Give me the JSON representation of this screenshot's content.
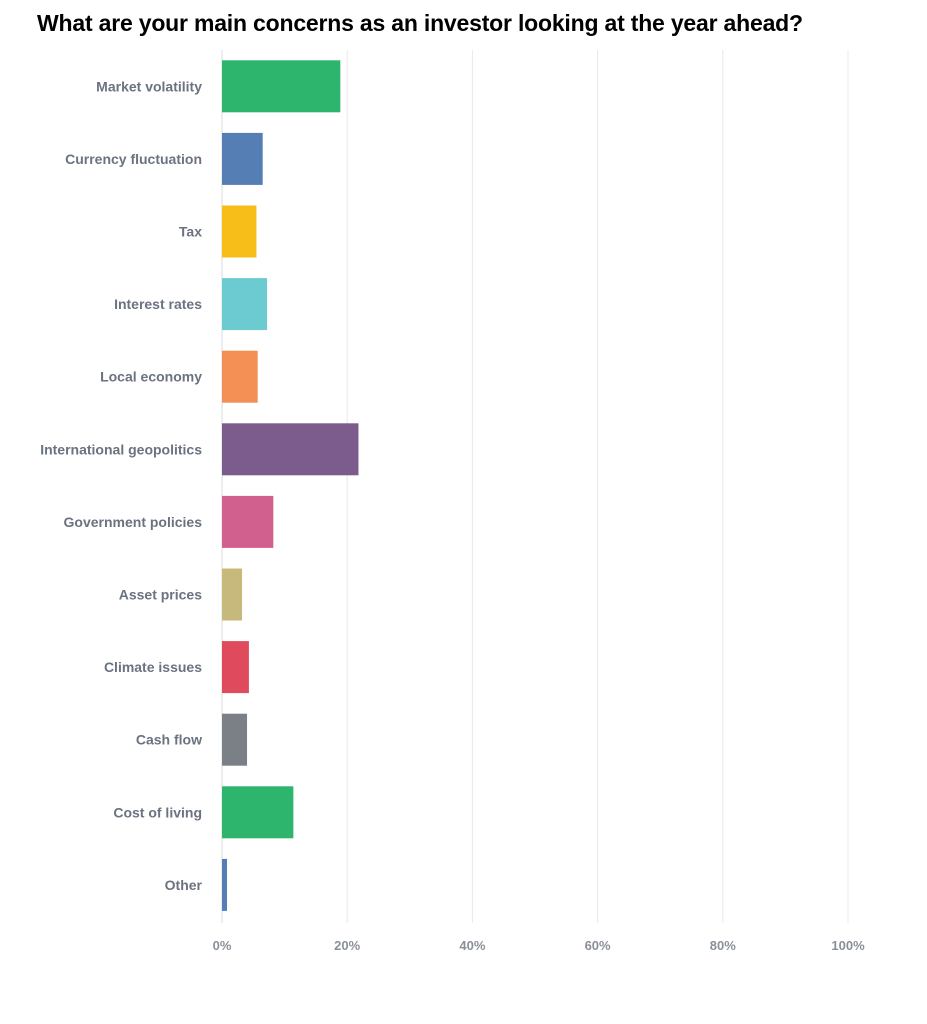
{
  "chart_data": {
    "type": "bar",
    "orientation": "horizontal",
    "title": "What are your main concerns as an investor looking at the year ahead?",
    "xlabel": "",
    "ylabel": "",
    "xlim": [
      0,
      100
    ],
    "x_ticks": [
      "0%",
      "20%",
      "40%",
      "60%",
      "80%",
      "100%"
    ],
    "x_tick_values": [
      0,
      20,
      40,
      60,
      80,
      100
    ],
    "grid": true,
    "categories": [
      "Market volatility",
      "Currency fluctuation",
      "Tax",
      "Interest rates",
      "Local economy",
      "International geopolitics",
      "Government policies",
      "Asset prices",
      "Climate issues",
      "Cash flow",
      "Cost of living",
      "Other"
    ],
    "values": [
      18.9,
      6.5,
      5.5,
      7.2,
      5.7,
      21.8,
      8.2,
      3.2,
      4.3,
      4.0,
      11.4,
      0.8
    ],
    "colors": [
      "#2db56e",
      "#547eb4",
      "#f7bd19",
      "#6bcbd0",
      "#f48f55",
      "#7b5c8c",
      "#d2608e",
      "#c7b97b",
      "#df4b5c",
      "#7a8085",
      "#2db56e",
      "#547eb4"
    ]
  }
}
